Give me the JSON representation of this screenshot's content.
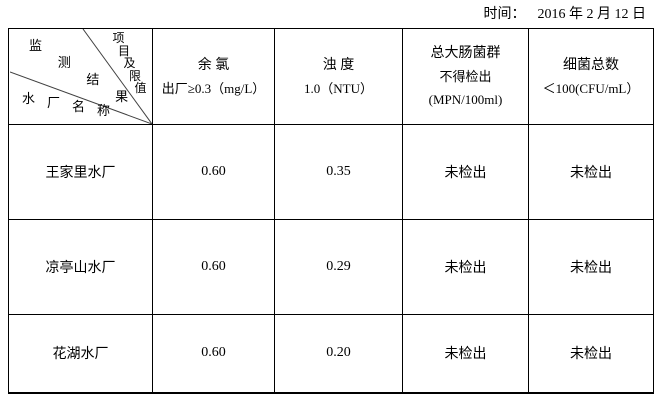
{
  "page": {
    "time_label": "时间：",
    "time_value": "2016 年 2 月 12 日"
  },
  "colors": {
    "text": "#000000",
    "border": "#000000",
    "diagonal_line": "#404040"
  },
  "table": {
    "corner": {
      "top_right_label": "项目及限值",
      "middle_label": "监测结果",
      "bottom_left_label": "水厂名称"
    },
    "columns": [
      {
        "name": "余 氯",
        "limit": "出厂≥0.3（mg/L）",
        "unit": ""
      },
      {
        "name": "浊 度",
        "limit": "1.0（NTU）",
        "unit": ""
      },
      {
        "name": "总大肠菌群",
        "limit": "不得检出",
        "unit": "(MPN/100ml)"
      },
      {
        "name": "细菌总数",
        "limit": "＜100(CFU/mL）",
        "unit": ""
      }
    ],
    "rows": [
      {
        "plant": "王家里水厂",
        "values": [
          "0.60",
          "0.35",
          "未检出",
          "未检出"
        ]
      },
      {
        "plant": "凉亭山水厂",
        "values": [
          "0.60",
          "0.29",
          "未检出",
          "未检出"
        ]
      },
      {
        "plant": "花湖水厂",
        "values": [
          "0.60",
          "0.20",
          "未检出",
          "未检出"
        ]
      }
    ]
  }
}
